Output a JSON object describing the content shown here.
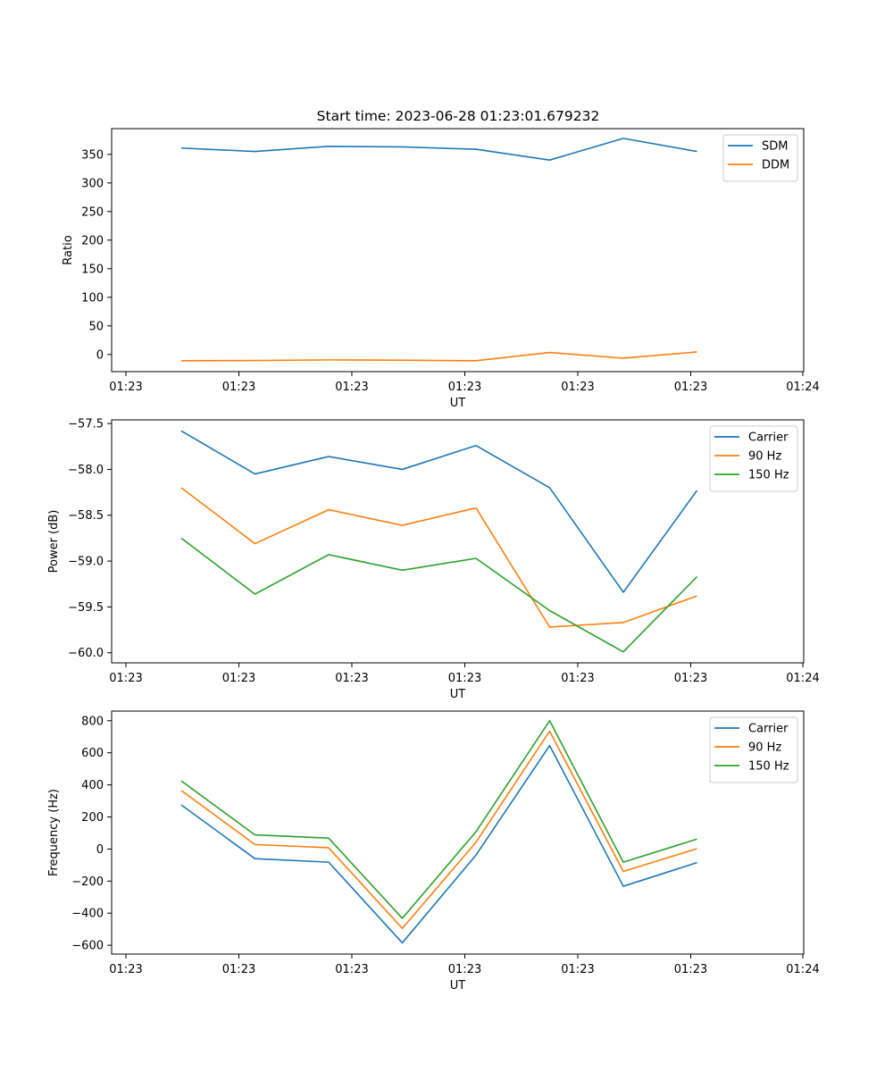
{
  "figure": {
    "title": "Start time: 2023-06-28 01:23:01.679232"
  },
  "chart_data": [
    {
      "type": "line",
      "title": "Start time: 2023-06-28 01:23:01.679232",
      "xlabel": "UT",
      "ylabel": "Ratio",
      "x_tick_labels": [
        "01:23",
        "01:23",
        "01:23",
        "01:23",
        "01:23",
        "01:23",
        "01:24"
      ],
      "x_tick_count": 7,
      "x_points": 8,
      "ylim": [
        -30,
        395
      ],
      "y_ticks": [
        0,
        50,
        100,
        150,
        200,
        250,
        300,
        350
      ],
      "grid": false,
      "legend_position": "top-right",
      "series": [
        {
          "name": "SDM",
          "color": "#1f77b4",
          "values": [
            361,
            355,
            364,
            363,
            359,
            340,
            378,
            355
          ]
        },
        {
          "name": "DDM",
          "color": "#ff7f0e",
          "values": [
            -11,
            -10.5,
            -9.5,
            -10,
            -11,
            3.5,
            -6.5,
            4.5
          ]
        }
      ]
    },
    {
      "type": "line",
      "xlabel": "UT",
      "ylabel": "Power (dB)",
      "x_tick_labels": [
        "01:23",
        "01:23",
        "01:23",
        "01:23",
        "01:23",
        "01:23",
        "01:24"
      ],
      "x_tick_count": 7,
      "x_points": 8,
      "ylim": [
        -60.11,
        -57.46
      ],
      "y_ticks": [
        -60.0,
        -59.5,
        -59.0,
        -58.5,
        -58.0,
        -57.5
      ],
      "y_tick_labels": [
        "−60.0",
        "−59.5",
        "−59.0",
        "−58.5",
        "−58.0",
        "−57.5"
      ],
      "grid": false,
      "legend_position": "top-right",
      "series": [
        {
          "name": "Carrier",
          "color": "#1f77b4",
          "values": [
            -57.58,
            -58.05,
            -57.86,
            -58.0,
            -57.74,
            -58.2,
            -59.34,
            -58.23
          ]
        },
        {
          "name": "90 Hz",
          "color": "#ff7f0e",
          "values": [
            -58.2,
            -58.81,
            -58.44,
            -58.61,
            -58.42,
            -59.72,
            -59.67,
            -59.38
          ]
        },
        {
          "name": "150 Hz",
          "color": "#2ca02c",
          "values": [
            -58.75,
            -59.36,
            -58.93,
            -59.1,
            -58.97,
            -59.54,
            -59.99,
            -59.17
          ]
        }
      ]
    },
    {
      "type": "line",
      "xlabel": "UT",
      "ylabel": "Frequency (Hz)",
      "x_tick_labels": [
        "01:23",
        "01:23",
        "01:23",
        "01:23",
        "01:23",
        "01:23",
        "01:24"
      ],
      "x_tick_count": 7,
      "x_points": 8,
      "ylim": [
        -655,
        860
      ],
      "y_ticks": [
        -600,
        -400,
        -200,
        0,
        200,
        400,
        600,
        800
      ],
      "y_tick_labels": [
        "−600",
        "−400",
        "−200",
        "0",
        "200",
        "400",
        "600",
        "800"
      ],
      "grid": false,
      "legend_position": "top-right",
      "series": [
        {
          "name": "Carrier",
          "color": "#1f77b4",
          "values": [
            275,
            -60,
            -82,
            -585,
            -38,
            645,
            -232,
            -85
          ]
        },
        {
          "name": "90 Hz",
          "color": "#ff7f0e",
          "values": [
            365,
            28,
            8,
            -495,
            42,
            735,
            -140,
            2
          ]
        },
        {
          "name": "150 Hz",
          "color": "#2ca02c",
          "values": [
            425,
            88,
            68,
            -432,
            108,
            800,
            -82,
            62
          ]
        }
      ]
    }
  ]
}
